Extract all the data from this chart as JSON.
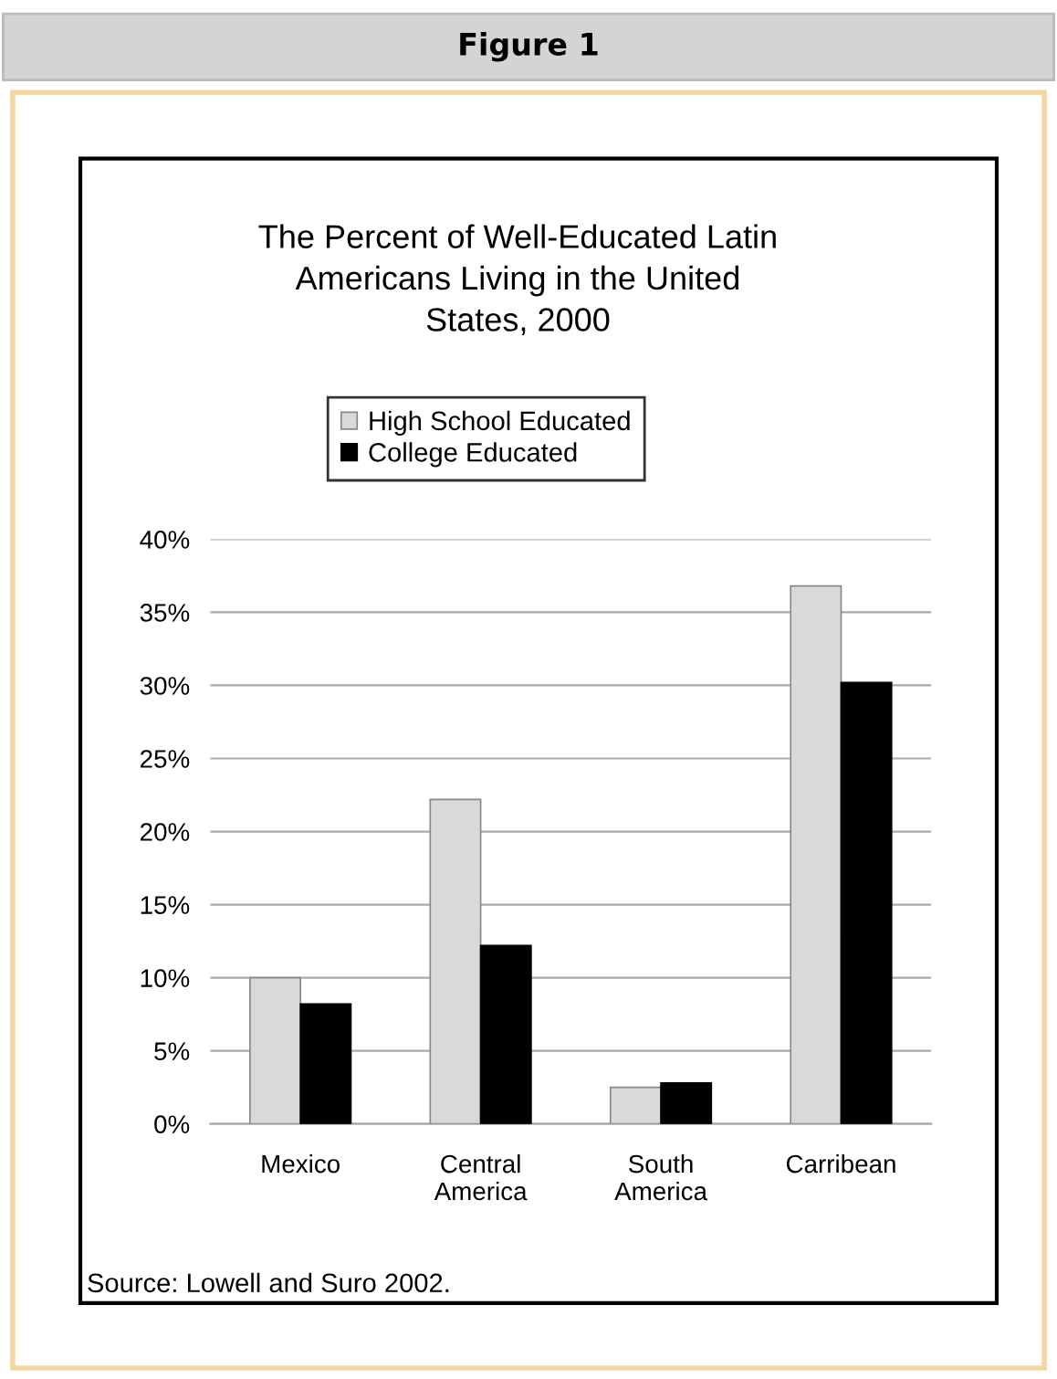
{
  "chart_data": {
    "type": "bar",
    "title": "The Percent of Well-Educated Latin\nAmericans Living in the United\nStates, 2000",
    "categories": [
      "Mexico",
      "Central\nAmerica",
      "South\nAmerica",
      "Carribean"
    ],
    "series": [
      {
        "name": "High School Educated",
        "color": "#d9d9d9",
        "values": [
          10,
          22.2,
          2.5,
          36.8
        ]
      },
      {
        "name": "College Educated",
        "color": "#000000",
        "values": [
          8.2,
          12.2,
          2.8,
          30.2
        ]
      }
    ],
    "ylim": [
      0,
      40
    ],
    "yticks": [
      {
        "value": 0,
        "label": "0%"
      },
      {
        "value": 5,
        "label": "5%"
      },
      {
        "value": 10,
        "label": "10%"
      },
      {
        "value": 15,
        "label": "15%"
      },
      {
        "value": 20,
        "label": "20%"
      },
      {
        "value": 25,
        "label": "25%"
      },
      {
        "value": 30,
        "label": "30%"
      },
      {
        "value": 35,
        "label": "35%"
      },
      {
        "value": 40,
        "label": "40%"
      }
    ],
    "grid": "y",
    "legend": "top",
    "annotations": [
      "Figure 1",
      "Source: Lowell and Suro 2002."
    ]
  }
}
